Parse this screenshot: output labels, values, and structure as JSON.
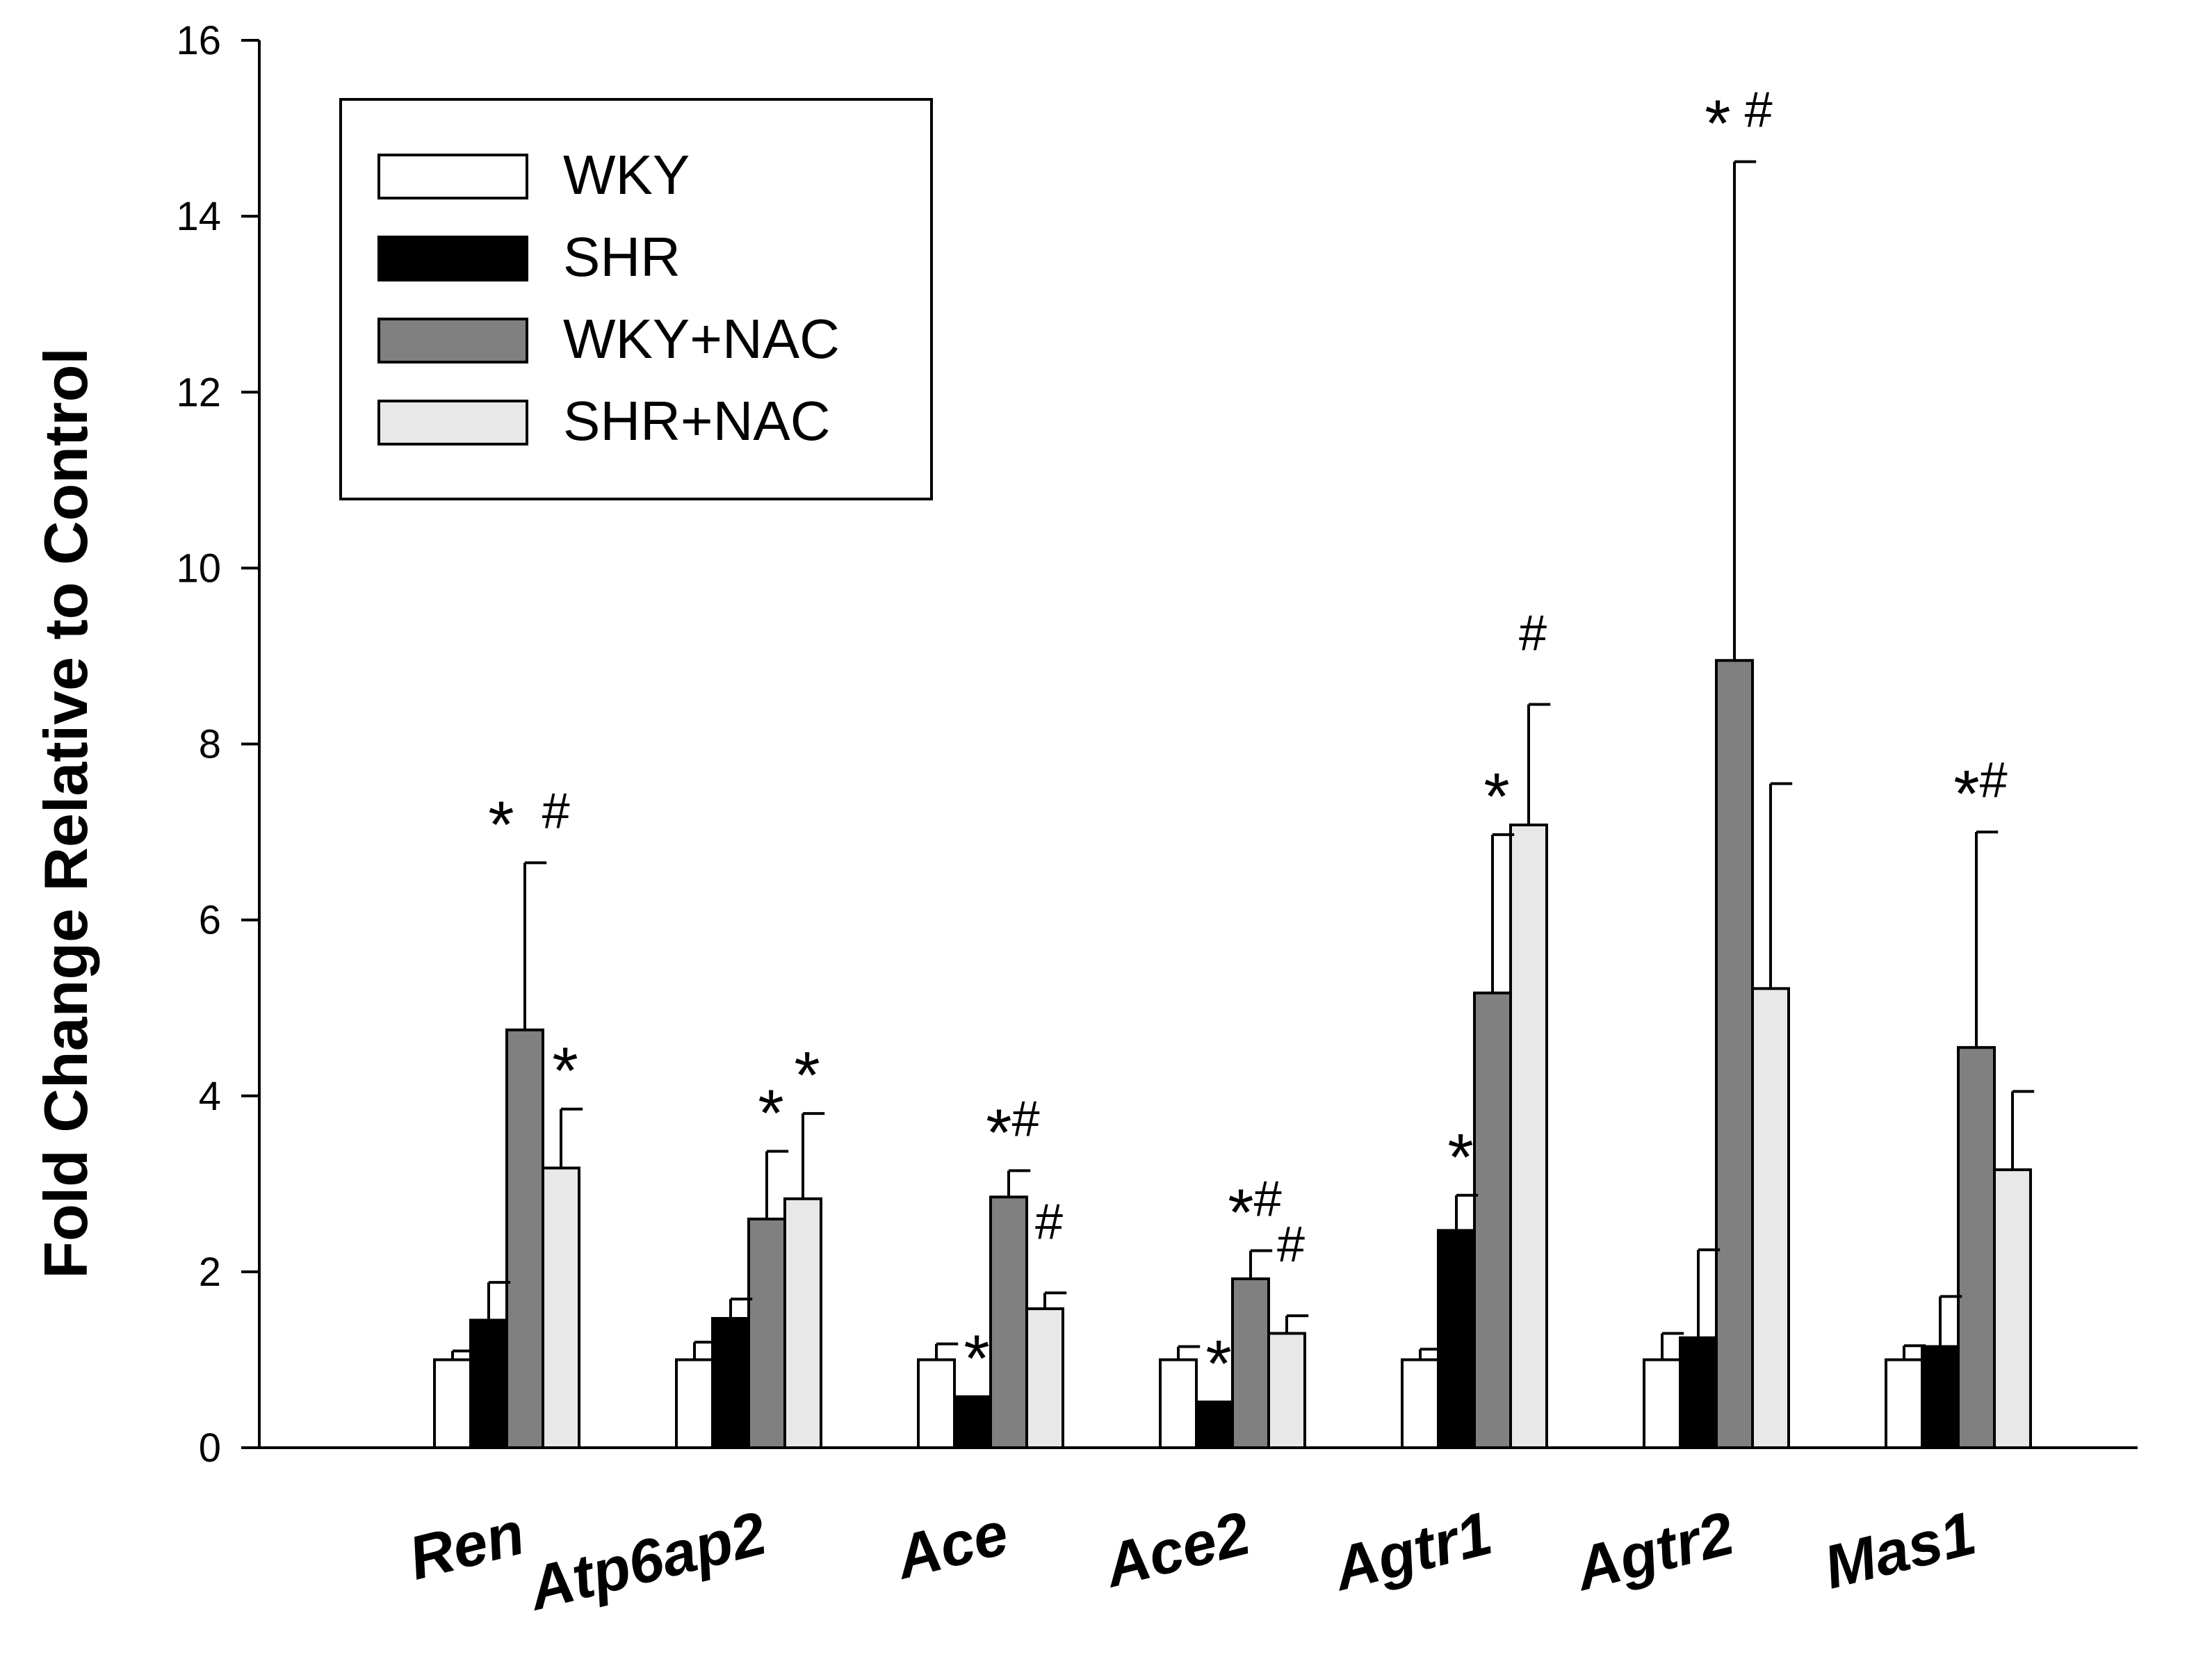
{
  "chart_data": {
    "type": "bar",
    "title": "",
    "xlabel": "",
    "ylabel": "Fold Change Relative to Control",
    "ylim": [
      0,
      16
    ],
    "yticks": [
      0,
      2,
      4,
      6,
      8,
      10,
      12,
      14,
      16
    ],
    "grid": false,
    "legend_position": "top-left",
    "categories": [
      "Ren",
      "Atp6ap2",
      "Ace",
      "Ace2",
      "Agtr1",
      "Agtr2",
      "Mas1"
    ],
    "series": [
      {
        "name": "WKY",
        "color": "#ffffff",
        "values": [
          1.0,
          1.0,
          1.0,
          1.0,
          1.0,
          1.0,
          1.0
        ],
        "errors": [
          0.1,
          0.2,
          0.18,
          0.15,
          0.12,
          0.3,
          0.16
        ],
        "annotations": [
          "",
          "",
          "",
          "",
          "",
          "",
          ""
        ]
      },
      {
        "name": "SHR",
        "color": "#000000",
        "values": [
          1.45,
          1.47,
          0.58,
          0.52,
          2.47,
          1.25,
          1.15
        ],
        "errors": [
          0.43,
          0.22,
          0.0,
          0.0,
          0.4,
          1.0,
          0.57
        ],
        "annotations": [
          "",
          "",
          "*",
          "*",
          "*",
          "",
          ""
        ]
      },
      {
        "name": "WKY+NAC",
        "color": "#808080",
        "values": [
          4.75,
          2.6,
          2.85,
          1.92,
          5.17,
          8.95,
          4.55
        ],
        "errors": [
          1.9,
          0.77,
          0.3,
          0.32,
          1.8,
          5.67,
          2.45
        ],
        "annotations": [
          "*  #",
          "*",
          "*#",
          "*#",
          "*",
          "* #",
          "*#"
        ]
      },
      {
        "name": "SHR+NAC",
        "color": "#e8e8e8",
        "values": [
          3.18,
          2.83,
          1.58,
          1.3,
          7.08,
          5.22,
          3.16
        ],
        "errors": [
          0.67,
          0.97,
          0.18,
          0.2,
          1.37,
          2.33,
          0.89
        ],
        "annotations": [
          "*",
          "*",
          "#",
          "#",
          "#",
          "",
          ""
        ]
      }
    ]
  }
}
